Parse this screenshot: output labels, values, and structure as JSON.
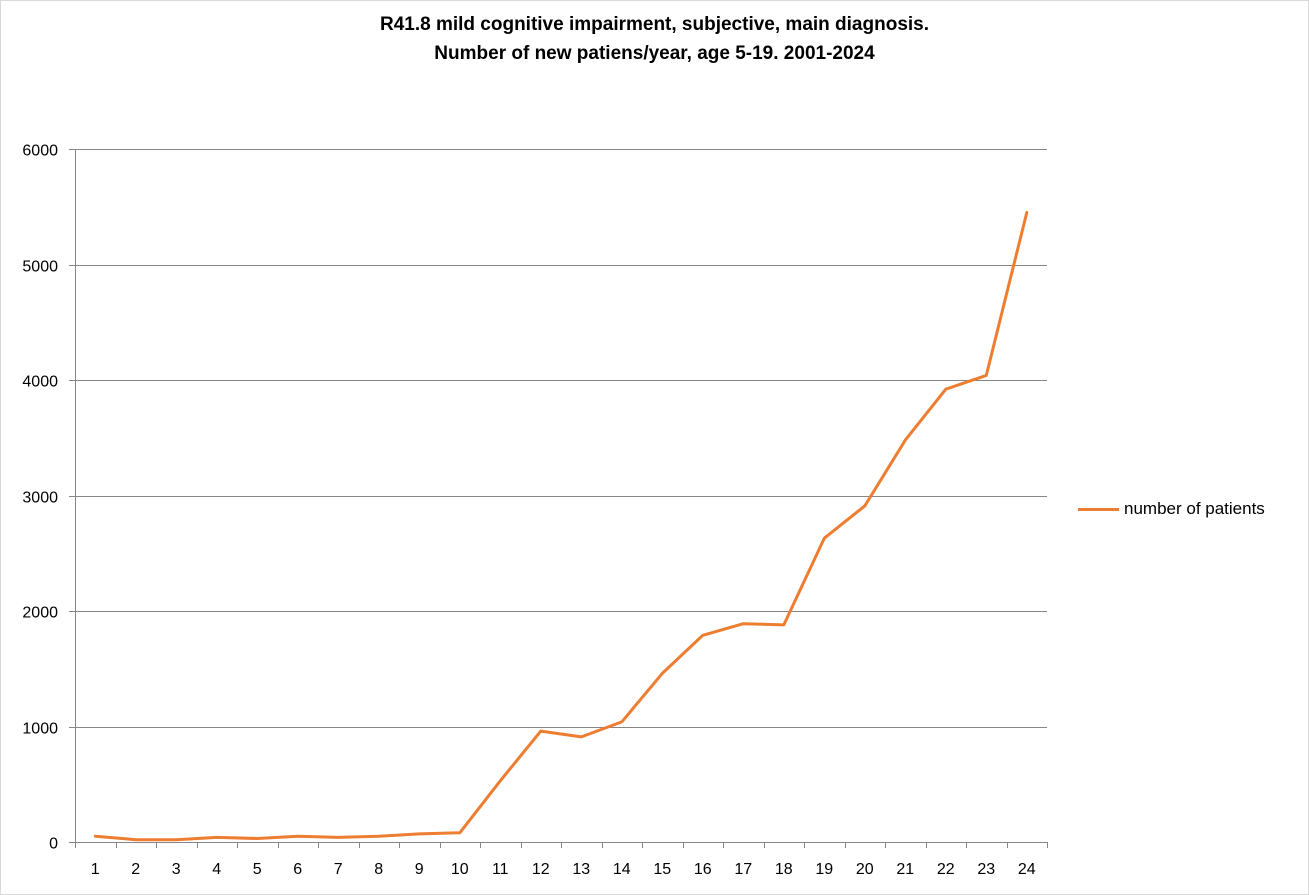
{
  "title_lines": [
    "R41.8 mild cognitive impairment, subjective, main diagnosis.",
    "Number of new patiens/year, age 5-19. 2001-2024"
  ],
  "colors": {
    "series": "#ED7D31",
    "gridline": "#868686",
    "axis": "#868686"
  },
  "chart_data": {
    "type": "line",
    "title": "R41.8 mild cognitive impairment, subjective, main diagnosis. Number of new patiens/year, age 5-19. 2001-2024",
    "xlabel": "",
    "ylabel": "",
    "categories": [
      "1",
      "2",
      "3",
      "4",
      "5",
      "6",
      "7",
      "8",
      "9",
      "10",
      "11",
      "12",
      "13",
      "14",
      "15",
      "16",
      "17",
      "18",
      "19",
      "20",
      "21",
      "22",
      "23",
      "24"
    ],
    "ylim": [
      0,
      6000
    ],
    "yticks": [
      0,
      1000,
      2000,
      3000,
      4000,
      5000,
      6000
    ],
    "grid": true,
    "legend": "right",
    "series": [
      {
        "name": "number of patients",
        "values": [
          50,
          20,
          20,
          40,
          30,
          50,
          40,
          50,
          70,
          80,
          530,
          960,
          910,
          1040,
          1460,
          1790,
          1890,
          1880,
          2630,
          2910,
          3480,
          3920,
          4040,
          5450
        ]
      }
    ]
  }
}
